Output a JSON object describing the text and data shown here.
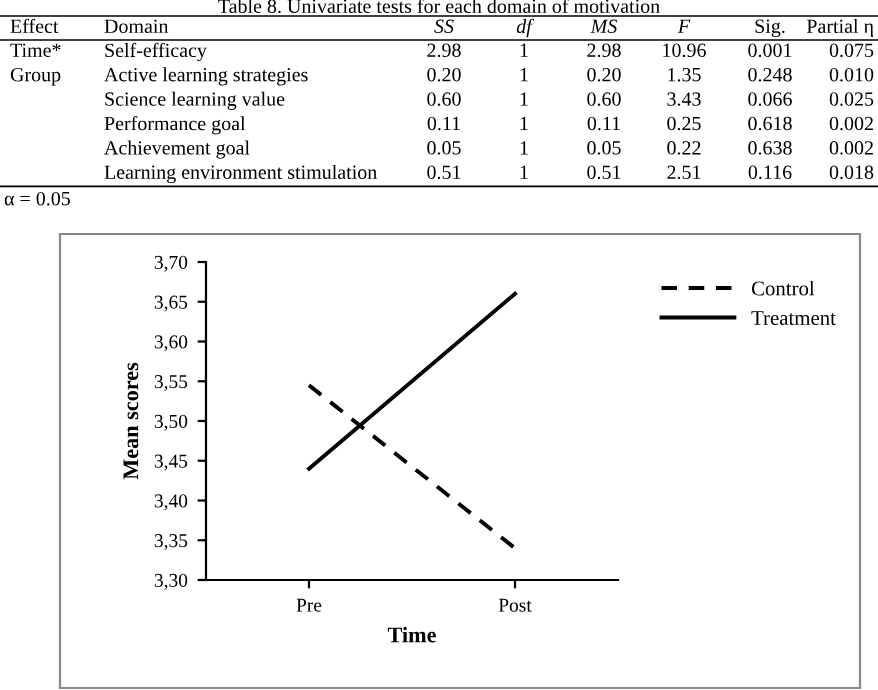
{
  "chart_data": [
    {
      "type": "other",
      "title": "Table 8. Univariate tests for each domain of motivation",
      "categories": [
        "Effect",
        "Domain",
        "SS",
        "df",
        "MS",
        "F",
        "Sig.",
        "Partial η"
      ],
      "cell_labels": [
        [
          "Time*",
          "Self-efficacy",
          "2.98",
          "1",
          "2.98",
          "10.96",
          "0.001",
          "0.075"
        ],
        [
          "Group",
          "Active learning strategies",
          "0.20",
          "1",
          "0.20",
          "1.35",
          "0.248",
          "0.010"
        ],
        [
          null,
          "Science learning value",
          "0.60",
          "1",
          "0.60",
          "3.43",
          "0.066",
          "0.025"
        ],
        [
          null,
          "Performance goal",
          "0.11",
          "1",
          "0.11",
          "0.25",
          "0.618",
          "0.002"
        ],
        [
          null,
          "Achievement goal",
          "0.05",
          "1",
          "0.05",
          "0.22",
          "0.638",
          "0.002"
        ],
        [
          null,
          "Learning environment stimulation",
          "0.51",
          "1",
          "0.51",
          "2.51",
          "0.116",
          "0.018"
        ]
      ],
      "annotations": [
        "α = 0.05"
      ]
    },
    {
      "type": "line",
      "xlabel": "Time",
      "ylabel": "Mean scores",
      "categories": [
        "Pre",
        "Post"
      ],
      "series": [
        {
          "name": "Control",
          "color": "#000000",
          "line_style": "dashed",
          "values": [
            3.545,
            3.34
          ]
        },
        {
          "name": "Treatment",
          "color": "#000000",
          "line_style": "solid",
          "values": [
            3.44,
            3.66
          ]
        }
      ],
      "ylim": [
        3.3,
        3.7
      ],
      "yticks": [
        {
          "value": 3.3,
          "label": "3,30"
        },
        {
          "value": 3.35,
          "label": "3,35"
        },
        {
          "value": 3.4,
          "label": "3,40"
        },
        {
          "value": 3.45,
          "label": "3,45"
        },
        {
          "value": 3.5,
          "label": "3,50"
        },
        {
          "value": 3.55,
          "label": "3,55"
        },
        {
          "value": 3.6,
          "label": "3,60"
        },
        {
          "value": 3.65,
          "label": "3,65"
        },
        {
          "value": 3.7,
          "label": "3,70"
        }
      ],
      "grid": false,
      "legend": "right",
      "marker": "none"
    }
  ]
}
